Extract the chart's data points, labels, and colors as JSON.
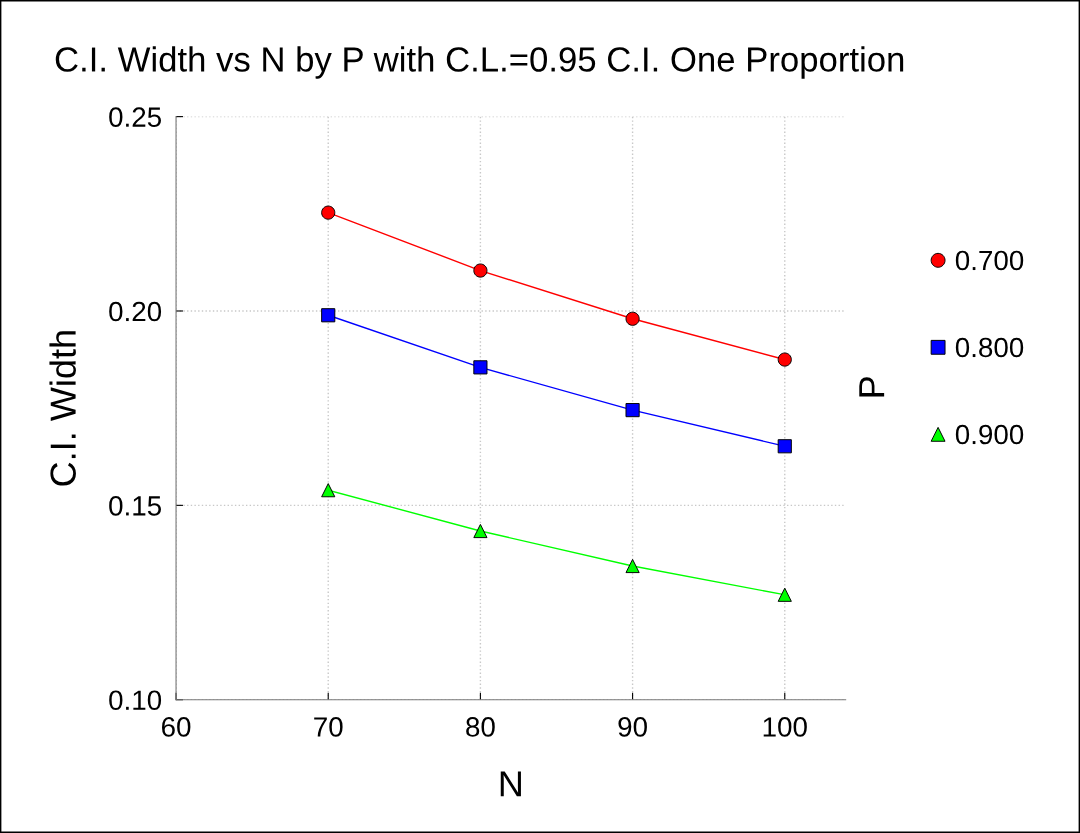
{
  "chart_data": {
    "type": "line",
    "title": "C.I. Width vs N by P with C.L.=0.95 C.I. One Proportion",
    "xlabel": "N",
    "ylabel": "C.I. Width",
    "legend_title": "P",
    "x": [
      70,
      80,
      90,
      100
    ],
    "series": [
      {
        "name": "0.700",
        "color": "#ff0000",
        "marker": "circle",
        "values": [
          0.2253,
          0.2104,
          0.198,
          0.1875
        ]
      },
      {
        "name": "0.800",
        "color": "#0000ff",
        "marker": "square",
        "values": [
          0.1989,
          0.1855,
          0.1745,
          0.1652
        ]
      },
      {
        "name": "0.900",
        "color": "#00ff00",
        "marker": "triangle",
        "values": [
          0.1539,
          0.1434,
          0.1344,
          0.127
        ]
      }
    ],
    "xlim": [
      60,
      104
    ],
    "xticks": [
      60,
      70,
      80,
      90,
      100
    ],
    "ylim": [
      0.1,
      0.25
    ],
    "yticks": [
      {
        "value": 0.1,
        "label": "0.10"
      },
      {
        "value": 0.15,
        "label": "0.15"
      },
      {
        "value": 0.2,
        "label": "0.20"
      },
      {
        "value": 0.25,
        "label": "0.25"
      }
    ],
    "grid": true,
    "legend": "right",
    "line_style": "solid"
  }
}
